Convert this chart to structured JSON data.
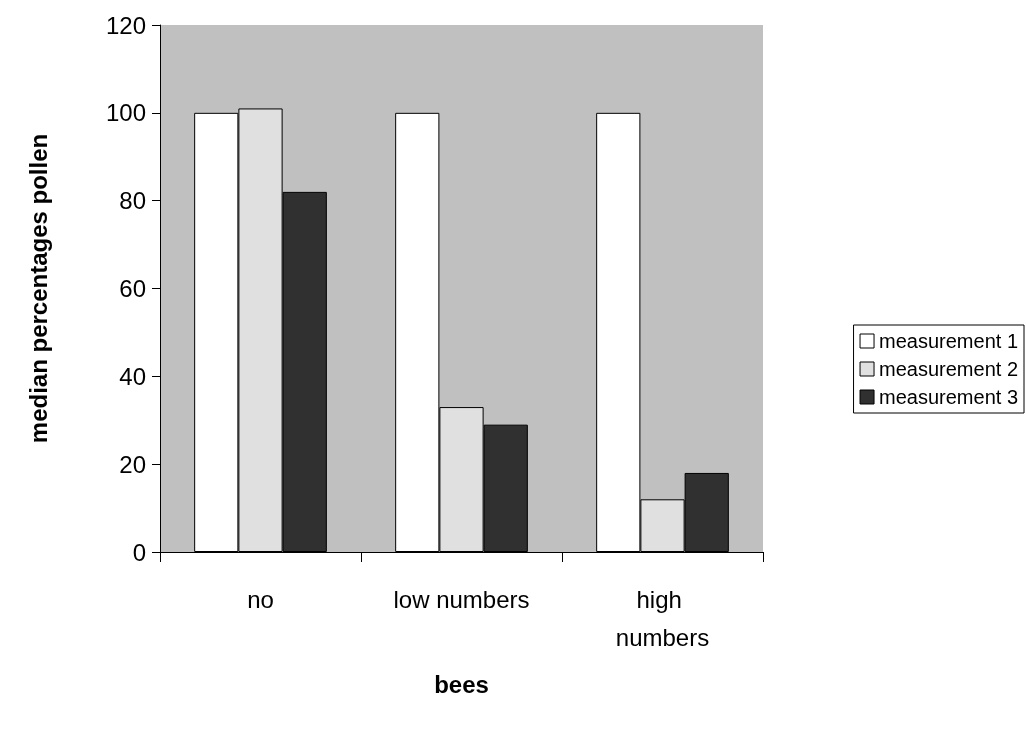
{
  "chart_data": {
    "type": "bar",
    "xlabel": "bees",
    "ylabel": "median percentages pollen",
    "categories": [
      "no",
      "low numbers",
      "high numbers"
    ],
    "series": [
      {
        "name": "measurement 1",
        "color": "#ffffff",
        "values": [
          100,
          100,
          100
        ]
      },
      {
        "name": "measurement 2",
        "color": "#e0e0e0",
        "values": [
          101,
          33,
          12
        ]
      },
      {
        "name": "measurement 3",
        "color": "#303030",
        "values": [
          82,
          29,
          18
        ]
      }
    ],
    "ylim": [
      0,
      120
    ],
    "yticks": [
      0,
      20,
      40,
      60,
      80,
      100,
      120
    ],
    "grid": false,
    "legend": "right"
  }
}
